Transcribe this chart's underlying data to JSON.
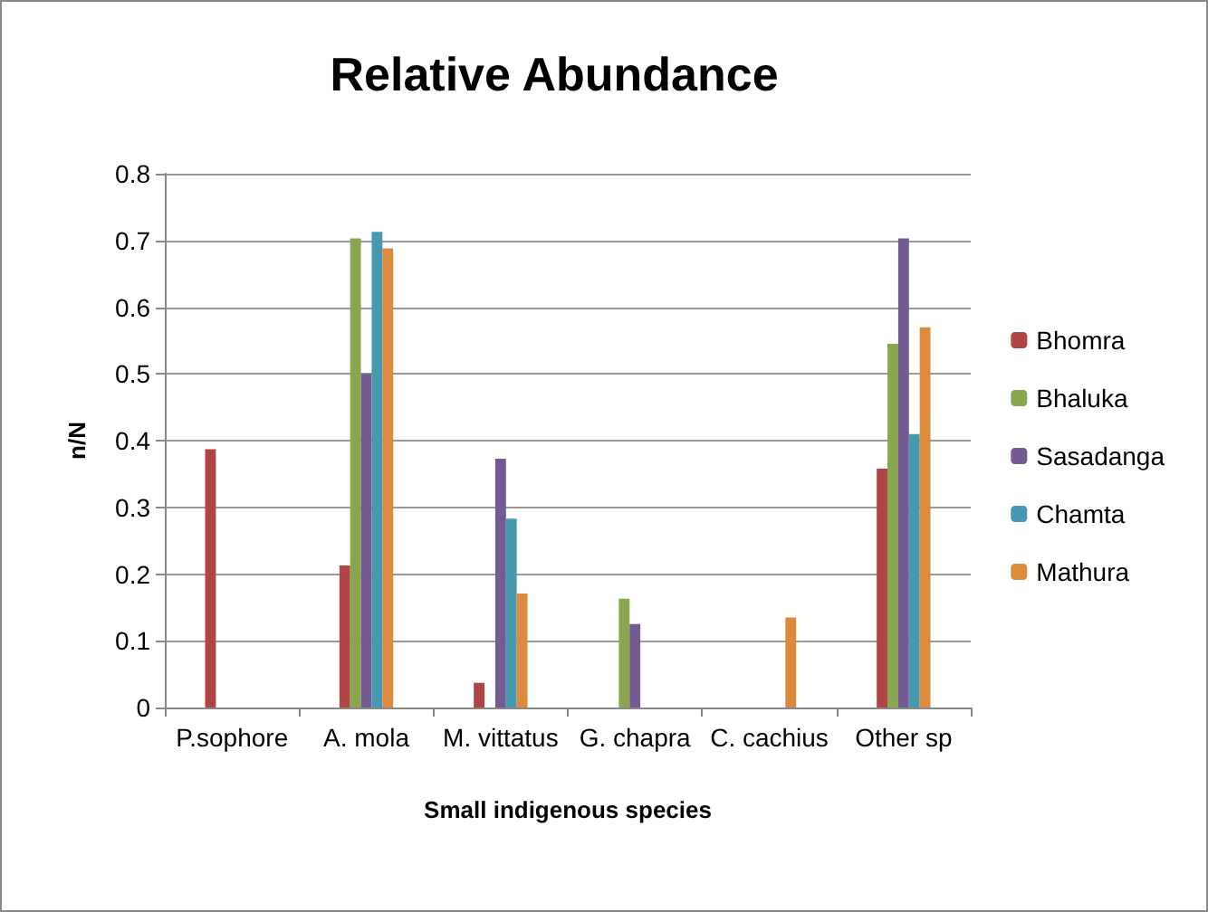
{
  "chart_data": {
    "type": "bar",
    "title": "Relative Abundance",
    "xlabel": "Small indigenous species",
    "ylabel": "n/N",
    "categories": [
      "P.sophore",
      "A. mola",
      "M. vittatus",
      "G. chapra",
      "C. cachius",
      "Other sp"
    ],
    "series": [
      {
        "name": "Bhomra",
        "color": "#b04545",
        "values": [
          0.387,
          0.213,
          0.037,
          null,
          null,
          0.358
        ]
      },
      {
        "name": "Bhaluka",
        "color": "#8aa64e",
        "values": [
          null,
          0.703,
          null,
          0.163,
          null,
          0.545
        ]
      },
      {
        "name": "Sasadanga",
        "color": "#735a93",
        "values": [
          null,
          0.5,
          0.373,
          0.125,
          null,
          0.703
        ]
      },
      {
        "name": "Chamta",
        "color": "#4599b0",
        "values": [
          null,
          0.713,
          0.283,
          null,
          null,
          0.41
        ]
      },
      {
        "name": "Mathura",
        "color": "#dd8a3c",
        "values": [
          null,
          0.688,
          0.171,
          null,
          0.135,
          0.57
        ]
      }
    ],
    "ylim": [
      0,
      0.8
    ],
    "yticks": [
      0,
      0.1,
      0.2,
      0.3,
      0.4,
      0.5,
      0.6,
      0.7,
      0.8
    ],
    "grid": "y",
    "legend": "right"
  }
}
